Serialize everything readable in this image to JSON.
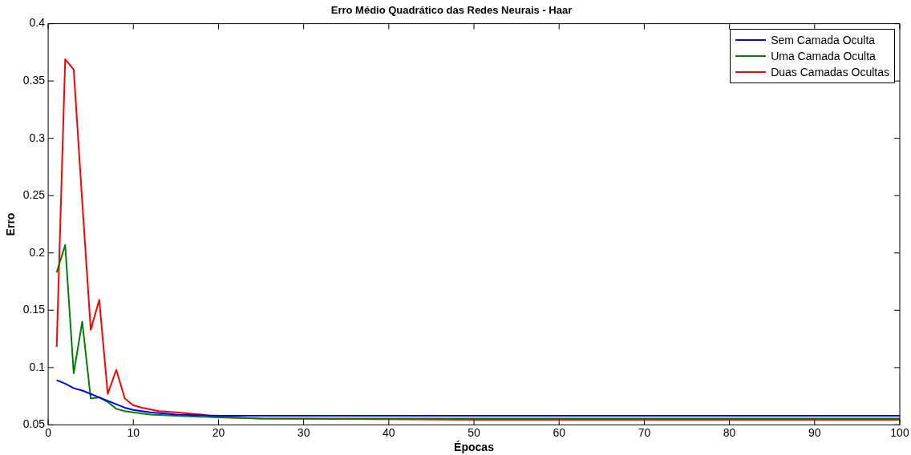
{
  "chart_data": {
    "type": "line",
    "title": "Erro Médio Quadrático das Redes Neurais - Haar",
    "xlabel": "Épocas",
    "ylabel": "Erro",
    "xlim": [
      0,
      100
    ],
    "xticks": [
      0,
      10,
      20,
      30,
      40,
      50,
      60,
      70,
      80,
      90,
      100
    ],
    "ylim": [
      0.05,
      0.4
    ],
    "yticks": [
      0.05,
      0.1,
      0.15,
      0.2,
      0.25,
      0.3,
      0.35,
      0.4
    ],
    "grid": false,
    "legend": "top right",
    "marker": "none",
    "line_style": "solid",
    "series": [
      {
        "name": "Sem Camada Oculta",
        "color": "#0000ff",
        "x": [
          1,
          2,
          3,
          4,
          5,
          6,
          7,
          8,
          9,
          10,
          12,
          15,
          20,
          100
        ],
        "values": [
          0.089,
          0.086,
          0.082,
          0.08,
          0.077,
          0.074,
          0.071,
          0.068,
          0.065,
          0.063,
          0.061,
          0.059,
          0.058,
          0.058
        ]
      },
      {
        "name": "Uma Camada Oculta",
        "color": "#008000",
        "x": [
          1,
          2,
          3,
          4,
          5,
          6,
          7,
          8,
          9,
          10,
          12,
          15,
          20,
          25,
          100
        ],
        "values": [
          0.183,
          0.207,
          0.095,
          0.14,
          0.073,
          0.074,
          0.07,
          0.064,
          0.062,
          0.061,
          0.059,
          0.058,
          0.0565,
          0.0555,
          0.0555
        ]
      },
      {
        "name": "Duas Camadas Ocultas",
        "color": "#ff0000",
        "x": [
          1,
          2,
          3,
          4,
          5,
          6,
          7,
          8,
          9,
          10,
          11,
          13,
          15,
          18,
          20,
          25,
          50,
          100
        ],
        "values": [
          0.118,
          0.369,
          0.36,
          0.245,
          0.133,
          0.159,
          0.077,
          0.098,
          0.073,
          0.067,
          0.065,
          0.062,
          0.061,
          0.059,
          0.057,
          0.0555,
          0.0545,
          0.0545
        ]
      }
    ]
  }
}
